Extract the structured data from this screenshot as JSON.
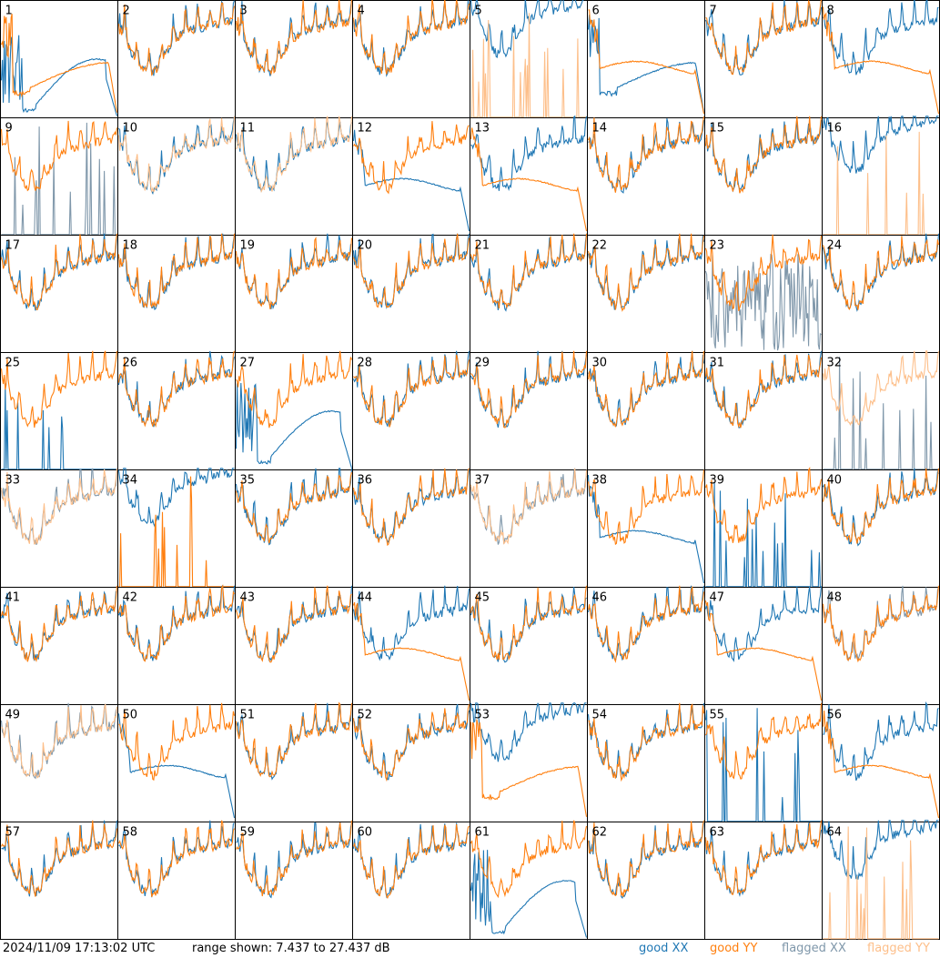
{
  "chart_data": {
    "type": "line",
    "title": "",
    "subplot_grid": {
      "rows": 8,
      "cols": 8
    },
    "series_legend": [
      "good XX",
      "good YY",
      "flagged XX",
      "flagged YY"
    ],
    "colors": {
      "good_xx": "#1f77b4",
      "good_yy": "#ff7f0e",
      "flagged_xx": "#7f97aa",
      "flagged_yy": "#fdbf8a",
      "frame": "#000000"
    },
    "y_range_db": [
      7.437,
      27.437
    ],
    "panels": [
      {
        "label": "1",
        "xx": "badlo",
        "yy": "dip",
        "fxx": false,
        "fyy": false
      },
      {
        "label": "2",
        "xx": "good",
        "yy": "good",
        "fxx": false,
        "fyy": false
      },
      {
        "label": "3",
        "xx": "good",
        "yy": "good",
        "fxx": false,
        "fyy": false
      },
      {
        "label": "4",
        "xx": "good",
        "yy": "good",
        "fxx": false,
        "fyy": false
      },
      {
        "label": "5",
        "xx": "high",
        "yy": "spikes",
        "fxx": false,
        "fyy": true
      },
      {
        "label": "6",
        "xx": "dip",
        "yy": "flat",
        "fxx": false,
        "fyy": false
      },
      {
        "label": "7",
        "xx": "good",
        "yy": "good",
        "fxx": false,
        "fyy": false
      },
      {
        "label": "8",
        "xx": "good",
        "yy": "flat",
        "fxx": false,
        "fyy": false
      },
      {
        "label": "9",
        "xx": "spikes",
        "yy": "good",
        "fxx": true,
        "fyy": false
      },
      {
        "label": "10",
        "xx": "good",
        "yy": "good",
        "fxx": false,
        "fyy": true
      },
      {
        "label": "11",
        "xx": "good",
        "yy": "good",
        "fxx": false,
        "fyy": true
      },
      {
        "label": "12",
        "xx": "flat",
        "yy": "good",
        "fxx": false,
        "fyy": false
      },
      {
        "label": "13",
        "xx": "good",
        "yy": "flat",
        "fxx": false,
        "fyy": false
      },
      {
        "label": "14",
        "xx": "good",
        "yy": "good",
        "fxx": false,
        "fyy": false
      },
      {
        "label": "15",
        "xx": "good",
        "yy": "good",
        "fxx": false,
        "fyy": false
      },
      {
        "label": "16",
        "xx": "high",
        "yy": "spikes",
        "fxx": false,
        "fyy": true
      },
      {
        "label": "17",
        "xx": "good",
        "yy": "good",
        "fxx": false,
        "fyy": false
      },
      {
        "label": "18",
        "xx": "good",
        "yy": "good",
        "fxx": false,
        "fyy": false
      },
      {
        "label": "19",
        "xx": "good",
        "yy": "good",
        "fxx": false,
        "fyy": false
      },
      {
        "label": "20",
        "xx": "good",
        "yy": "good",
        "fxx": false,
        "fyy": false
      },
      {
        "label": "21",
        "xx": "good",
        "yy": "good",
        "fxx": false,
        "fyy": false
      },
      {
        "label": "22",
        "xx": "good",
        "yy": "good",
        "fxx": false,
        "fyy": false
      },
      {
        "label": "23",
        "xx": "noisy",
        "yy": "good",
        "fxx": true,
        "fyy": false
      },
      {
        "label": "24",
        "xx": "good",
        "yy": "good",
        "fxx": false,
        "fyy": false
      },
      {
        "label": "25",
        "xx": "spikes",
        "yy": "good",
        "fxx": false,
        "fyy": false
      },
      {
        "label": "26",
        "xx": "good",
        "yy": "good",
        "fxx": false,
        "fyy": false
      },
      {
        "label": "27",
        "xx": "badlo",
        "yy": "good",
        "fxx": false,
        "fyy": false
      },
      {
        "label": "28",
        "xx": "good",
        "yy": "good",
        "fxx": false,
        "fyy": false
      },
      {
        "label": "29",
        "xx": "good",
        "yy": "good",
        "fxx": false,
        "fyy": false
      },
      {
        "label": "30",
        "xx": "good",
        "yy": "good",
        "fxx": false,
        "fyy": false
      },
      {
        "label": "31",
        "xx": "good",
        "yy": "good",
        "fxx": false,
        "fyy": false
      },
      {
        "label": "32",
        "xx": "spikes",
        "yy": "good",
        "fxx": true,
        "fyy": true
      },
      {
        "label": "33",
        "xx": "good",
        "yy": "good",
        "fxx": true,
        "fyy": true
      },
      {
        "label": "34",
        "xx": "high",
        "yy": "spikes",
        "fxx": false,
        "fyy": false
      },
      {
        "label": "35",
        "xx": "good",
        "yy": "good",
        "fxx": false,
        "fyy": false
      },
      {
        "label": "36",
        "xx": "good",
        "yy": "good",
        "fxx": false,
        "fyy": false
      },
      {
        "label": "37",
        "xx": "good",
        "yy": "good",
        "fxx": true,
        "fyy": true
      },
      {
        "label": "38",
        "xx": "flat",
        "yy": "good",
        "fxx": false,
        "fyy": false
      },
      {
        "label": "39",
        "xx": "spikes",
        "yy": "good",
        "fxx": false,
        "fyy": false
      },
      {
        "label": "40",
        "xx": "good",
        "yy": "good",
        "fxx": false,
        "fyy": false
      },
      {
        "label": "41",
        "xx": "good",
        "yy": "good",
        "fxx": false,
        "fyy": false
      },
      {
        "label": "42",
        "xx": "good",
        "yy": "good",
        "fxx": false,
        "fyy": false
      },
      {
        "label": "43",
        "xx": "good",
        "yy": "good",
        "fxx": false,
        "fyy": false
      },
      {
        "label": "44",
        "xx": "good",
        "yy": "flat",
        "fxx": false,
        "fyy": false
      },
      {
        "label": "45",
        "xx": "good",
        "yy": "good",
        "fxx": false,
        "fyy": false
      },
      {
        "label": "46",
        "xx": "good",
        "yy": "good",
        "fxx": false,
        "fyy": false
      },
      {
        "label": "47",
        "xx": "good",
        "yy": "flat",
        "fxx": false,
        "fyy": false
      },
      {
        "label": "48",
        "xx": "good",
        "yy": "good",
        "fxx": true,
        "fyy": false
      },
      {
        "label": "49",
        "xx": "good",
        "yy": "good",
        "fxx": true,
        "fyy": true
      },
      {
        "label": "50",
        "xx": "flat",
        "yy": "good",
        "fxx": false,
        "fyy": false
      },
      {
        "label": "51",
        "xx": "good",
        "yy": "good",
        "fxx": false,
        "fyy": false
      },
      {
        "label": "52",
        "xx": "good",
        "yy": "good",
        "fxx": false,
        "fyy": false
      },
      {
        "label": "53",
        "xx": "high",
        "yy": "dip",
        "fxx": false,
        "fyy": false
      },
      {
        "label": "54",
        "xx": "good",
        "yy": "good",
        "fxx": false,
        "fyy": false
      },
      {
        "label": "55",
        "xx": "spikes",
        "yy": "good",
        "fxx": false,
        "fyy": false
      },
      {
        "label": "56",
        "xx": "good",
        "yy": "flat",
        "fxx": false,
        "fyy": false
      },
      {
        "label": "57",
        "xx": "good",
        "yy": "good",
        "fxx": false,
        "fyy": false
      },
      {
        "label": "58",
        "xx": "good",
        "yy": "good",
        "fxx": false,
        "fyy": false
      },
      {
        "label": "59",
        "xx": "good",
        "yy": "good",
        "fxx": false,
        "fyy": false
      },
      {
        "label": "60",
        "xx": "good",
        "yy": "good",
        "fxx": false,
        "fyy": false
      },
      {
        "label": "61",
        "xx": "badlo",
        "yy": "good",
        "fxx": false,
        "fyy": false
      },
      {
        "label": "62",
        "xx": "good",
        "yy": "good",
        "fxx": false,
        "fyy": false
      },
      {
        "label": "63",
        "xx": "good",
        "yy": "good",
        "fxx": false,
        "fyy": false
      },
      {
        "label": "64",
        "xx": "high",
        "yy": "spikes",
        "fxx": false,
        "fyy": true
      }
    ]
  },
  "footer": {
    "timestamp": "2024/11/09 17:13:02 UTC",
    "range_text": "range shown: 7.437 to 27.437 dB",
    "legend": {
      "good_xx": "good XX",
      "good_yy": "good YY",
      "flagged_xx": "flagged XX",
      "flagged_yy": "flagged YY"
    }
  }
}
